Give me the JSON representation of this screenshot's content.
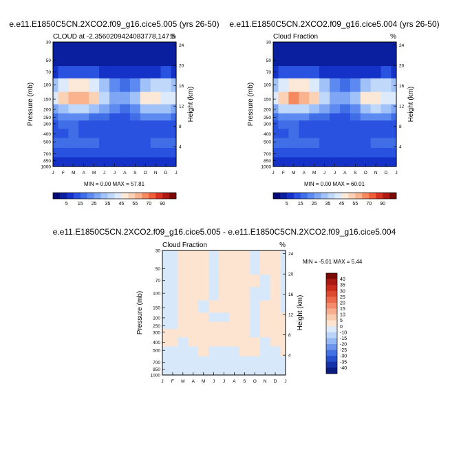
{
  "panels": {
    "a": {
      "title": "e.e11.E1850C5CN.2XCO2.f09_g16.cice5.005 (yrs 26-50)",
      "left_label": "CLOUD at -2.3560209424083778,147.5",
      "right_label": "%",
      "minmax": "MIN =   0.00 MAX =  57.81"
    },
    "b": {
      "title": "e.e11.E1850C5CN.2XCO2.f09_g16.cice5.004 (yrs 26-50)",
      "left_label": "Cloud Fraction",
      "right_label": "%",
      "minmax": "MIN =   0.00 MAX =  60.01"
    },
    "c": {
      "title": "e.e11.E1850C5CN.2XCO2.f09_g16.cice5.005 - e.e11.E1850C5CN.2XCO2.f09_g16.cice5.004",
      "left_label": "Cloud Fraction",
      "right_label": "%",
      "minmax": "MIN =  -5.01 MAX =    5.44"
    }
  },
  "axes": {
    "ylabel": "Pressure (mb)",
    "ylabel_right": "Height (km)",
    "pressure_ticks": [
      "30",
      "50",
      "70",
      "100",
      "150",
      "200",
      "250",
      "300",
      "400",
      "500",
      "700",
      "850",
      "1000"
    ],
    "height_ticks": [
      "24",
      "20",
      "16",
      "12",
      "8",
      "4"
    ],
    "month_ticks": [
      "J",
      "F",
      "M",
      "A",
      "M",
      "J",
      "J",
      "A",
      "S",
      "O",
      "N",
      "D",
      "J"
    ]
  },
  "colorbar_abs": {
    "labels": [
      "5",
      "15",
      "25",
      "35",
      "45",
      "55",
      "70",
      "90"
    ],
    "colors": [
      "#050a78",
      "#0a1ea0",
      "#1532c8",
      "#2a52e0",
      "#3f6ee6",
      "#5c8af0",
      "#7ea6f4",
      "#a0c2f8",
      "#c0d8fa",
      "#dceafc",
      "#fbe8d6",
      "#fcd2b6",
      "#f9b48f",
      "#f58a60",
      "#ee5e3a",
      "#d8321e",
      "#b01a12",
      "#7a0a06"
    ]
  },
  "colorbar_diff": {
    "labels": [
      "40",
      "35",
      "30",
      "25",
      "20",
      "15",
      "10",
      "5",
      "0",
      "-10",
      "-15",
      "-20",
      "-25",
      "-30",
      "-35",
      "-40"
    ],
    "colors": [
      "#7a0a06",
      "#a81a12",
      "#c82a1c",
      "#de4a30",
      "#ec6a4c",
      "#f28c6c",
      "#f6ae90",
      "#f9ccb2",
      "#fde4d0",
      "#dceafc",
      "#bcd4f8",
      "#94b6f2",
      "#6c94ec",
      "#4472e2",
      "#2850cc",
      "#1634a8",
      "#0a1c80"
    ]
  },
  "chart_data": [
    {
      "type": "heatmap",
      "title": "e.e11.E1850C5CN.2XCO2.f09_g16.cice5.005 (yrs 26-50)",
      "subtitle": "CLOUD at -2.3560209424083778,147.5",
      "units": "%",
      "x": [
        "J",
        "F",
        "M",
        "A",
        "M",
        "J",
        "J",
        "A",
        "S",
        "O",
        "N",
        "D",
        "J"
      ],
      "y": [
        "30",
        "50",
        "70",
        "100",
        "150",
        "200",
        "250",
        "300",
        "400",
        "500",
        "700",
        "850",
        "1000"
      ],
      "ylabel": "Pressure (mb)",
      "ylabel_right": "Height (km)",
      "min": 0.0,
      "max": 57.81,
      "values": [
        [
          2,
          2,
          2,
          2,
          2,
          2,
          2,
          2,
          2,
          2,
          2,
          2,
          2
        ],
        [
          3,
          3,
          3,
          3,
          3,
          3,
          3,
          3,
          3,
          3,
          3,
          3,
          3
        ],
        [
          8,
          10,
          12,
          12,
          11,
          8,
          6,
          5,
          5,
          6,
          8,
          10,
          8
        ],
        [
          30,
          40,
          46,
          46,
          42,
          30,
          20,
          18,
          22,
          32,
          38,
          35,
          30
        ],
        [
          40,
          52,
          58,
          56,
          50,
          38,
          28,
          26,
          32,
          45,
          48,
          40,
          40
        ],
        [
          28,
          34,
          36,
          36,
          32,
          25,
          20,
          18,
          22,
          32,
          34,
          30,
          28
        ],
        [
          18,
          22,
          22,
          20,
          18,
          16,
          14,
          14,
          16,
          20,
          22,
          20,
          18
        ],
        [
          12,
          16,
          16,
          14,
          12,
          12,
          11,
          11,
          12,
          13,
          14,
          13,
          12
        ],
        [
          14,
          14,
          15,
          14,
          13,
          12,
          11,
          11,
          12,
          12,
          13,
          13,
          14
        ],
        [
          16,
          18,
          18,
          17,
          16,
          14,
          13,
          13,
          14,
          14,
          15,
          15,
          16
        ],
        [
          12,
          14,
          14,
          13,
          12,
          11,
          10,
          10,
          11,
          11,
          12,
          12,
          12
        ],
        [
          8,
          9,
          9,
          9,
          8,
          8,
          8,
          7,
          7,
          7,
          8,
          8,
          8
        ],
        [
          5,
          5,
          5,
          5,
          5,
          5,
          5,
          5,
          5,
          5,
          5,
          5,
          5
        ]
      ]
    },
    {
      "type": "heatmap",
      "title": "e.e11.E1850C5CN.2XCO2.f09_g16.cice5.004 (yrs 26-50)",
      "subtitle": "Cloud Fraction",
      "units": "%",
      "x": [
        "J",
        "F",
        "M",
        "A",
        "M",
        "J",
        "J",
        "A",
        "S",
        "O",
        "N",
        "D",
        "J"
      ],
      "y": [
        "30",
        "50",
        "70",
        "100",
        "150",
        "200",
        "250",
        "300",
        "400",
        "500",
        "700",
        "850",
        "1000"
      ],
      "ylabel": "Pressure (mb)",
      "ylabel_right": "Height (km)",
      "min": 0.0,
      "max": 60.01,
      "values": [
        [
          2,
          2,
          2,
          2,
          2,
          2,
          2,
          2,
          2,
          2,
          2,
          2,
          2
        ],
        [
          3,
          3,
          3,
          3,
          3,
          3,
          3,
          3,
          3,
          3,
          3,
          3,
          3
        ],
        [
          8,
          10,
          12,
          12,
          11,
          8,
          6,
          5,
          5,
          6,
          8,
          10,
          8
        ],
        [
          31,
          41,
          47,
          47,
          43,
          31,
          21,
          18,
          23,
          33,
          39,
          36,
          31
        ],
        [
          41,
          54,
          60,
          58,
          51,
          39,
          28,
          26,
          33,
          46,
          49,
          41,
          41
        ],
        [
          29,
          35,
          37,
          37,
          33,
          26,
          20,
          18,
          23,
          33,
          35,
          31,
          29
        ],
        [
          18,
          22,
          23,
          21,
          19,
          16,
          14,
          14,
          16,
          21,
          22,
          20,
          18
        ],
        [
          12,
          16,
          16,
          14,
          12,
          12,
          11,
          11,
          12,
          13,
          14,
          13,
          12
        ],
        [
          14,
          14,
          15,
          14,
          13,
          12,
          11,
          11,
          12,
          12,
          13,
          13,
          14
        ],
        [
          16,
          18,
          18,
          17,
          16,
          14,
          13,
          13,
          14,
          14,
          15,
          15,
          16
        ],
        [
          12,
          14,
          14,
          13,
          12,
          11,
          10,
          10,
          11,
          11,
          12,
          12,
          12
        ],
        [
          8,
          9,
          9,
          9,
          8,
          8,
          8,
          7,
          7,
          7,
          8,
          8,
          8
        ],
        [
          5,
          5,
          5,
          5,
          5,
          5,
          5,
          5,
          5,
          5,
          5,
          5,
          5
        ]
      ]
    },
    {
      "type": "heatmap",
      "title": "e.e11.E1850C5CN.2XCO2.f09_g16.cice5.005 - e.e11.E1850C5CN.2XCO2.f09_g16.cice5.004",
      "subtitle": "Cloud Fraction",
      "units": "%",
      "x": [
        "J",
        "F",
        "M",
        "A",
        "M",
        "J",
        "J",
        "A",
        "S",
        "O",
        "N",
        "D",
        "J"
      ],
      "y": [
        "30",
        "50",
        "70",
        "100",
        "150",
        "200",
        "250",
        "300",
        "400",
        "500",
        "700",
        "850",
        "1000"
      ],
      "ylabel": "Pressure (mb)",
      "ylabel_right": "Height (km)",
      "min": -5.01,
      "max": 5.44,
      "values": [
        [
          -1,
          -1,
          1,
          1,
          1,
          -1,
          1,
          1,
          1,
          -1,
          1,
          1,
          -1
        ],
        [
          -1,
          -1,
          1,
          1,
          1,
          -1,
          1,
          1,
          1,
          -1,
          1,
          1,
          -1
        ],
        [
          -1,
          -1,
          1,
          1,
          1,
          -1,
          1,
          1,
          1,
          1,
          -1,
          1,
          -1
        ],
        [
          -1,
          -1,
          1,
          1,
          1,
          -1,
          1,
          1,
          1,
          -1,
          -1,
          1,
          -1
        ],
        [
          -1,
          -1,
          1,
          1,
          -1,
          1,
          1,
          1,
          1,
          -1,
          1,
          1,
          -1
        ],
        [
          -1,
          -1,
          1,
          1,
          1,
          -1,
          -1,
          1,
          1,
          -1,
          1,
          1,
          1
        ],
        [
          -1,
          -1,
          1,
          1,
          1,
          1,
          1,
          1,
          1,
          -1,
          1,
          1,
          1
        ],
        [
          1,
          1,
          1,
          1,
          1,
          1,
          1,
          1,
          1,
          -1,
          1,
          1,
          1
        ],
        [
          1,
          1,
          -1,
          1,
          1,
          1,
          1,
          1,
          1,
          1,
          -1,
          1,
          1
        ],
        [
          -1,
          -1,
          -1,
          -1,
          1,
          -1,
          -1,
          -1,
          1,
          1,
          -1,
          -1,
          1
        ],
        [
          -1,
          -1,
          -1,
          -1,
          -1,
          -1,
          -1,
          -1,
          -1,
          -1,
          -1,
          -1,
          -1
        ],
        [
          -1,
          -1,
          -1,
          -1,
          -1,
          -1,
          -1,
          -1,
          -1,
          -1,
          -1,
          -1,
          -1
        ],
        [
          -1,
          -1,
          -1,
          -1,
          -1,
          -1,
          -1,
          -1,
          -1,
          -1,
          -1,
          -1,
          -1
        ]
      ]
    }
  ]
}
